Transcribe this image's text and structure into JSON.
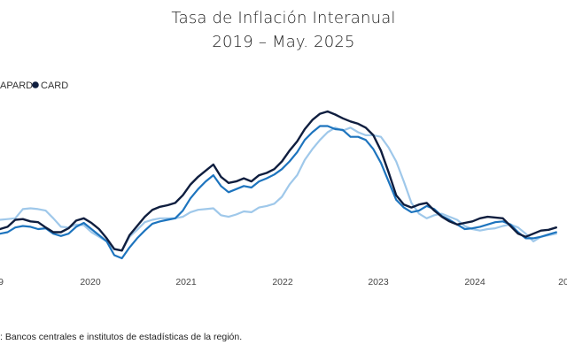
{
  "chart_data": {
    "type": "line",
    "title": "Tasa de Inflación Interanual",
    "subtitle": "2019 – May. 2025",
    "xlabel": "",
    "ylabel": "",
    "legend": {
      "placement": "top-left",
      "entries": [
        "APARD",
        "CARD"
      ]
    },
    "x_ticks": [
      "9",
      "2020",
      "2021",
      "2022",
      "2023",
      "2024",
      "20"
    ],
    "x_start": 2019.0,
    "x_step": 0.0833,
    "grid": false,
    "series": [
      {
        "name": "",
        "color": "#9fc8ea",
        "values": [
          2.5,
          2.55,
          2.6,
          3.2,
          3.25,
          3.2,
          3.1,
          2.6,
          2.05,
          2.0,
          2.2,
          2.15,
          1.7,
          1.4,
          1.1,
          0.6,
          0.5,
          1.4,
          1.85,
          2.35,
          2.5,
          2.6,
          2.6,
          2.6,
          2.7,
          3.0,
          3.15,
          3.2,
          3.25,
          2.8,
          2.7,
          2.85,
          3.05,
          3.0,
          3.3,
          3.4,
          3.55,
          4.0,
          4.8,
          5.4,
          6.4,
          7.1,
          7.7,
          8.2,
          8.5,
          8.3,
          8.5,
          8.2,
          8.0,
          8.0,
          7.9,
          7.2,
          6.3,
          5.0,
          3.6,
          2.9,
          2.6,
          2.8,
          2.9,
          2.7,
          2.5,
          2.1,
          1.9,
          1.8,
          1.9,
          1.95,
          2.1,
          2.2,
          2.0,
          1.6,
          1.1,
          1.4,
          1.5,
          1.6
        ]
      },
      {
        "name": "",
        "color": "#1d74be",
        "values": [
          1.6,
          1.7,
          2.0,
          2.1,
          2.05,
          1.9,
          1.95,
          1.6,
          1.45,
          1.6,
          2.05,
          2.3,
          1.9,
          1.5,
          1.1,
          0.2,
          0.0,
          0.7,
          1.3,
          1.8,
          2.25,
          2.4,
          2.5,
          2.6,
          3.1,
          3.9,
          4.5,
          5.0,
          5.4,
          4.7,
          4.3,
          4.5,
          4.7,
          4.6,
          5.0,
          5.2,
          5.45,
          5.8,
          6.3,
          6.9,
          7.7,
          8.2,
          8.6,
          8.6,
          8.4,
          8.35,
          7.9,
          7.9,
          7.7,
          7.1,
          6.2,
          5.0,
          3.8,
          3.3,
          3.0,
          3.1,
          3.4,
          3.2,
          2.75,
          2.5,
          2.2,
          1.9,
          1.95,
          2.05,
          2.2,
          2.35,
          2.4,
          2.2,
          1.7,
          1.3,
          1.3,
          1.4,
          1.55,
          1.7
        ]
      },
      {
        "name": "CARD",
        "color": "#0f1e3f",
        "values": [
          1.9,
          2.05,
          2.5,
          2.55,
          2.4,
          2.35,
          2.0,
          1.7,
          1.7,
          1.95,
          2.45,
          2.6,
          2.3,
          1.9,
          1.3,
          0.6,
          0.5,
          1.5,
          2.1,
          2.7,
          3.15,
          3.35,
          3.45,
          3.6,
          4.1,
          4.8,
          5.3,
          5.7,
          6.1,
          5.3,
          4.9,
          5.0,
          5.2,
          5.0,
          5.4,
          5.55,
          5.8,
          6.3,
          7.0,
          7.6,
          8.4,
          9.0,
          9.4,
          9.55,
          9.35,
          9.1,
          8.9,
          8.75,
          8.5,
          8.0,
          7.0,
          5.6,
          4.1,
          3.5,
          3.3,
          3.5,
          3.6,
          3.1,
          2.7,
          2.4,
          2.2,
          2.3,
          2.4,
          2.6,
          2.7,
          2.65,
          2.6,
          2.1,
          1.6,
          1.4,
          1.6,
          1.8,
          1.85,
          2.0
        ]
      }
    ]
  },
  "source_text": ": Bancos centrales e institutos de estadísticas de la región."
}
